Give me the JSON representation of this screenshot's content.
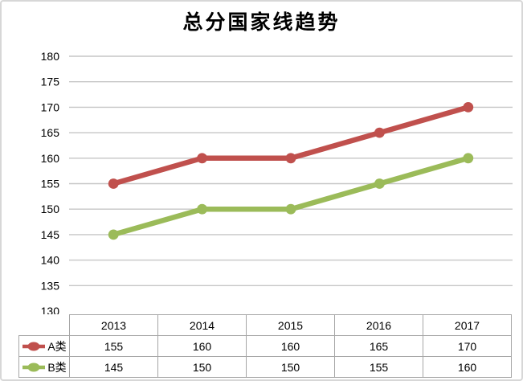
{
  "chart": {
    "title": "总分国家线趋势"
  },
  "chart_data": {
    "type": "line",
    "title": "总分国家线趋势",
    "xlabel": "",
    "ylabel": "",
    "categories": [
      "2013",
      "2014",
      "2015",
      "2016",
      "2017"
    ],
    "series": [
      {
        "name": "A类",
        "values": [
          155,
          160,
          160,
          165,
          170
        ],
        "color": "#C0504D"
      },
      {
        "name": "B类",
        "values": [
          145,
          150,
          150,
          155,
          160
        ],
        "color": "#9BBB59"
      }
    ],
    "ylim": [
      130,
      180
    ],
    "ystep": 5,
    "grid": "horizontal",
    "legend_position": "data-table-left-column",
    "marker": "circle"
  },
  "theme": {
    "grid_color": "#C6C6C6",
    "table_border_color": "#A6A6A6",
    "frame_border_color": "#D7D7D7",
    "background": "#FFFFFF",
    "text_color": "#000000"
  }
}
